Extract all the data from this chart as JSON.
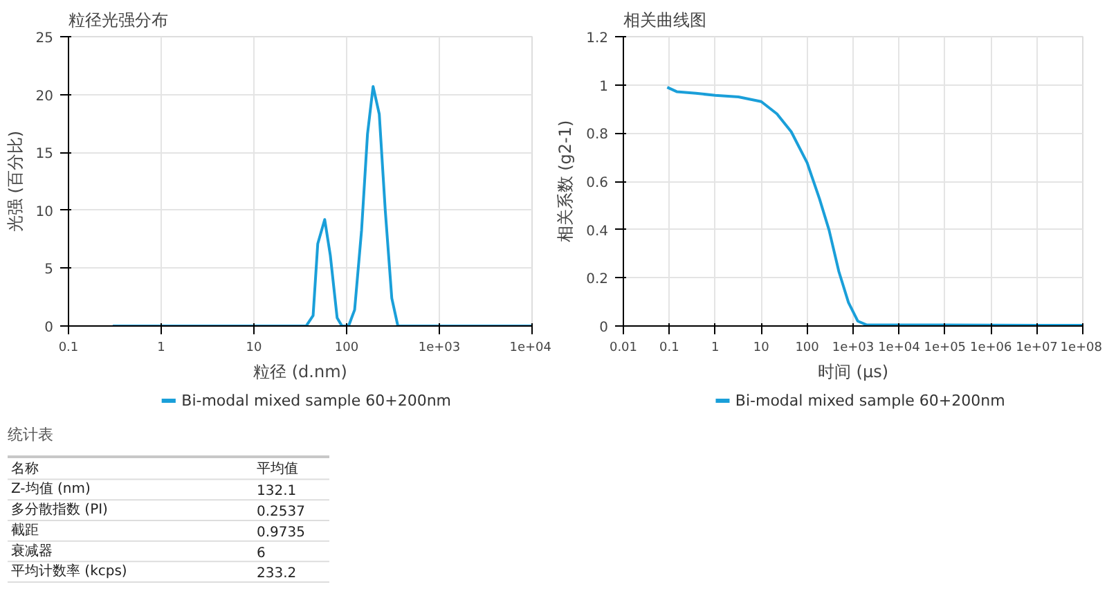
{
  "chart_data": [
    {
      "type": "line",
      "title": "粒径光强分布",
      "xlabel": "粒径 (d.nm)",
      "ylabel": "光强 (百分比)",
      "log": "x",
      "grid": true,
      "legend": "bottom",
      "xlim": [
        0.1,
        10000
      ],
      "xticks": [
        0.1,
        1,
        10,
        100,
        {
          "value": 1000,
          "label": "1e+03"
        },
        {
          "value": 10000,
          "label": "1e+04"
        }
      ],
      "ylim": [
        0,
        25
      ],
      "yticks": [
        0,
        5,
        10,
        15,
        20,
        25
      ],
      "series": [
        {
          "name": "Bi-modal mixed sample 60+200nm",
          "color": "#1a9fd9",
          "x": [
            0.3,
            36.6,
            43.5,
            48.8,
            58,
            66.7,
            79,
            89,
            105,
            122,
            145,
            168,
            193,
            225,
            261,
            307,
            357,
            10000
          ],
          "values": [
            0,
            0,
            0.9,
            7.1,
            9.2,
            6.1,
            0.7,
            0,
            0,
            1.4,
            8.3,
            16.6,
            20.7,
            18.3,
            10,
            2.4,
            0,
            0
          ]
        }
      ]
    },
    {
      "type": "line",
      "title": "相关曲线图",
      "xlabel": "时间 (μs)",
      "ylabel": "相关系数 (g2-1)",
      "log": "x",
      "grid": true,
      "legend": "bottom",
      "xlim": [
        0.01,
        100000000
      ],
      "xticks": [
        0.01,
        0.1,
        1,
        10,
        100,
        {
          "value": 1000,
          "label": "1e+03"
        },
        {
          "value": 10000,
          "label": "1e+04"
        },
        {
          "value": 100000,
          "label": "1e+05"
        },
        {
          "value": 1000000,
          "label": "1e+06"
        },
        {
          "value": 10000000,
          "label": "1e+07"
        },
        {
          "value": 100000000,
          "label": "1e+08"
        }
      ],
      "ylim": [
        0,
        1.2
      ],
      "yticks": [
        0,
        0.2,
        0.4,
        0.6,
        0.8,
        1,
        1.2
      ],
      "series": [
        {
          "name": "Bi-modal mixed sample 60+200nm",
          "color": "#1a9fd9",
          "x": [
            0.09,
            0.145,
            0.38,
            1,
            3.2,
            10,
            22,
            45,
            100,
            186,
            300,
            490,
            794,
            1270,
            2000,
            100000,
            10000000,
            100000000
          ],
          "values": [
            0.99,
            0.972,
            0.965,
            0.957,
            0.95,
            0.931,
            0.88,
            0.806,
            0.677,
            0.527,
            0.398,
            0.226,
            0.097,
            0.02,
            0.004,
            0.004,
            0.003,
            0.003
          ]
        }
      ]
    },
    {
      "type": "other",
      "title": "统计表",
      "annotations": [
        "名称",
        "平均值",
        "Z-均值 (nm)",
        "132.1",
        "多分散指数 (PI)",
        "0.2537",
        "截距",
        "0.9735",
        "衰减器",
        "6",
        "平均计数率 (kcps)",
        "233.2"
      ]
    }
  ]
}
